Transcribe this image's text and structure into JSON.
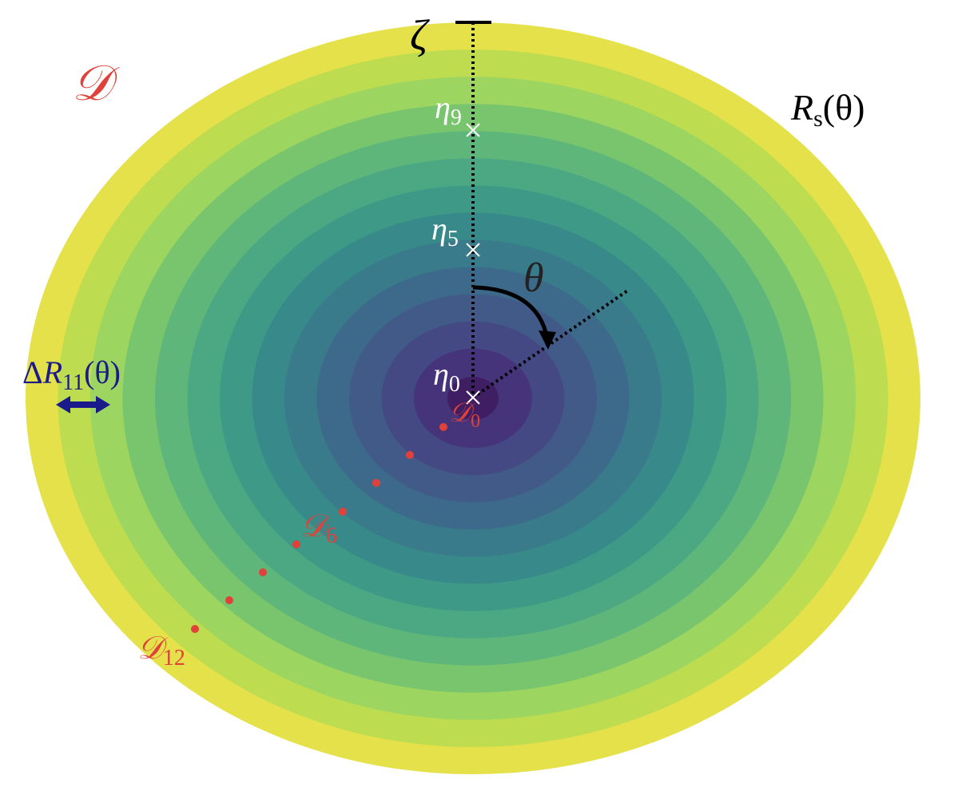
{
  "domain_label": {
    "symbol": "𝒟"
  },
  "zeta": {
    "symbol": "ζ"
  },
  "boundary_label": {
    "symbol": "R",
    "subscript": "s",
    "argument": "(θ)"
  },
  "eta_9": {
    "symbol": "η",
    "subscript": "9"
  },
  "eta_5": {
    "symbol": "η",
    "subscript": "5"
  },
  "eta_0": {
    "symbol": "η",
    "subscript": "0"
  },
  "angle_label": {
    "symbol": "θ"
  },
  "ring_width_label": {
    "prefix": "Δ",
    "symbol": "R",
    "subscript": "11",
    "argument": "(θ)"
  },
  "subdomains": [
    {
      "symbol": "𝒟",
      "subscript": "0"
    },
    {
      "symbol": "𝒟",
      "subscript": "6"
    },
    {
      "symbol": "𝒟",
      "subscript": "12"
    }
  ]
}
